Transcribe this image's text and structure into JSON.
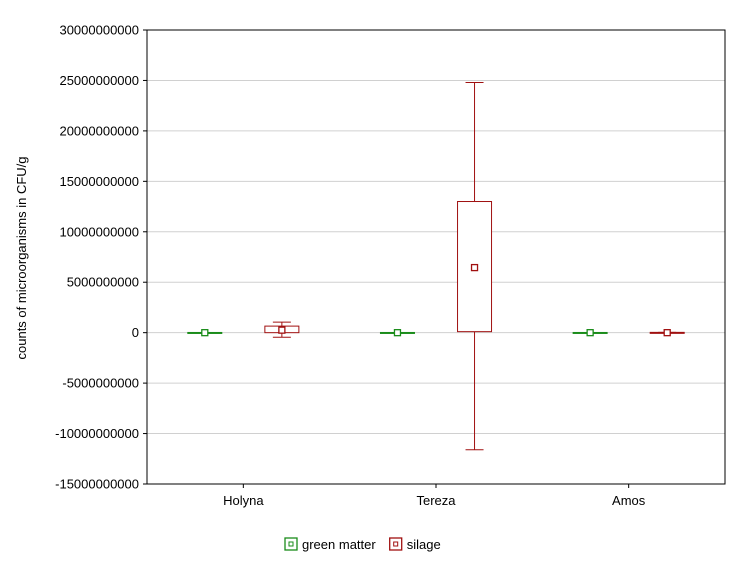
{
  "chart_data": {
    "type": "box",
    "title": "",
    "xlabel": "",
    "ylabel": "counts of microorganisms in CFU/g",
    "ylim": [
      -15000000000,
      30000000000
    ],
    "yticks": [
      30000000000,
      25000000000,
      20000000000,
      15000000000,
      10000000000,
      5000000000,
      0,
      -5000000000,
      -10000000000,
      -15000000000
    ],
    "ytick_labels": [
      "30000000000",
      "25000000000",
      "20000000000",
      "15000000000",
      "10000000000",
      "5000000000",
      "0",
      "-5000000000",
      "-10000000000",
      "-15000000000"
    ],
    "categories": [
      "Holyna",
      "Tereza",
      "Amos"
    ],
    "grid": true,
    "legend_position": "bottom-center",
    "series": [
      {
        "name": "green matter",
        "color": "#1a8c1a",
        "boxes": [
          {
            "category": "Holyna",
            "median": 0,
            "q1": -20000000,
            "q3": 20000000,
            "whisker_low": -20000000,
            "whisker_high": 20000000
          },
          {
            "category": "Tereza",
            "median": 0,
            "q1": -20000000,
            "q3": 20000000,
            "whisker_low": -20000000,
            "whisker_high": 20000000
          },
          {
            "category": "Amos",
            "median": 0,
            "q1": -20000000,
            "q3": 20000000,
            "whisker_low": -20000000,
            "whisker_high": 20000000
          }
        ]
      },
      {
        "name": "silage",
        "color": "#a01010",
        "boxes": [
          {
            "category": "Holyna",
            "median": 250000000,
            "q1": 0,
            "q3": 650000000,
            "whisker_low": -450000000,
            "whisker_high": 1050000000
          },
          {
            "category": "Tereza",
            "median": 6450000000,
            "q1": 100000000,
            "q3": 13000000000,
            "whisker_low": -11600000000,
            "whisker_high": 24800000000
          },
          {
            "category": "Amos",
            "median": 0,
            "q1": -30000000,
            "q3": 30000000,
            "whisker_low": -30000000,
            "whisker_high": 30000000
          }
        ]
      }
    ]
  }
}
